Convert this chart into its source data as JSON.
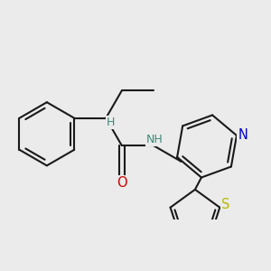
{
  "bg_color": "#ebebeb",
  "bond_color": "#1a1a1a",
  "bond_lw": 1.5,
  "atom_colors": {
    "O": "#cc0000",
    "NH": "#3d8b7a",
    "H": "#3d8b7a",
    "N": "#0000cc",
    "S": "#b8b800"
  },
  "font_size": 9.5,
  "dpi": 100
}
